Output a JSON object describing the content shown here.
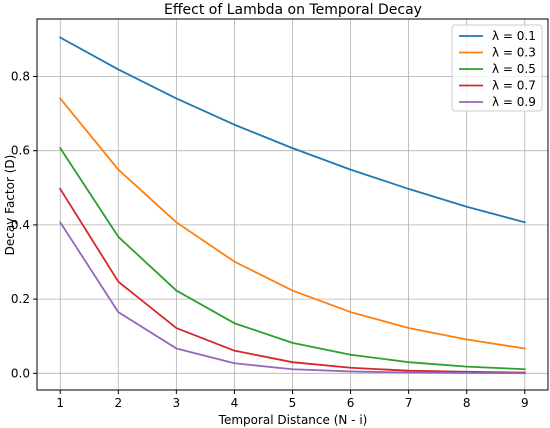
{
  "chart_data": {
    "type": "line",
    "title": "Effect of Lambda on Temporal Decay",
    "xlabel": "Temporal Distance (N - i)",
    "ylabel": "Decay Factor (D)",
    "x": [
      1,
      2,
      3,
      4,
      5,
      6,
      7,
      8,
      9
    ],
    "xticks": [
      "1",
      "2",
      "3",
      "4",
      "5",
      "6",
      "7",
      "8",
      "9"
    ],
    "yticks": [
      "0.0",
      "0.2",
      "0.4",
      "0.6",
      "0.8"
    ],
    "xlim": [
      0.6,
      9.4
    ],
    "ylim": [
      -0.045,
      0.955
    ],
    "grid": true,
    "legend_position": "top-right",
    "series": [
      {
        "name": "λ = 0.1",
        "color": "#1f77b4",
        "values": [
          0.905,
          0.819,
          0.741,
          0.67,
          0.607,
          0.549,
          0.497,
          0.449,
          0.407
        ]
      },
      {
        "name": "λ = 0.3",
        "color": "#ff7f0e",
        "values": [
          0.741,
          0.549,
          0.407,
          0.301,
          0.223,
          0.165,
          0.122,
          0.091,
          0.067
        ]
      },
      {
        "name": "λ = 0.5",
        "color": "#2ca02c",
        "values": [
          0.607,
          0.368,
          0.223,
          0.135,
          0.082,
          0.05,
          0.03,
          0.018,
          0.011
        ]
      },
      {
        "name": "λ = 0.7",
        "color": "#d62728",
        "values": [
          0.497,
          0.247,
          0.122,
          0.061,
          0.03,
          0.015,
          0.007,
          0.004,
          0.002
        ]
      },
      {
        "name": "λ = 0.9",
        "color": "#9467bd",
        "values": [
          0.407,
          0.165,
          0.067,
          0.027,
          0.011,
          0.005,
          0.002,
          0.001,
          0.0003
        ]
      }
    ]
  }
}
